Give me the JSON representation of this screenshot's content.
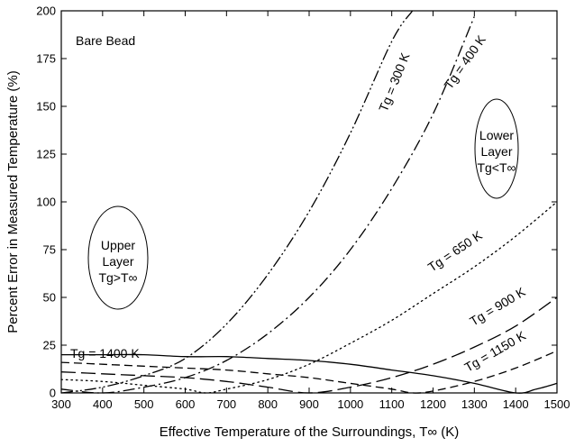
{
  "chart_data": {
    "type": "line",
    "xlabel": "Effective Temperature of the Surroundings, T∞ (K)",
    "ylabel": "Percent Error in Measured Temperature (%)",
    "xlim": [
      300,
      1500
    ],
    "ylim": [
      0,
      200
    ],
    "x_ticks": [
      300,
      400,
      500,
      600,
      700,
      800,
      900,
      1000,
      1100,
      1200,
      1300,
      1400,
      1500
    ],
    "y_ticks": [
      0,
      25,
      50,
      75,
      100,
      125,
      150,
      175,
      200
    ],
    "grid": false,
    "series": [
      {
        "name": "Tg = 300 K",
        "dash": "dash-dot-dot",
        "x": [
          300,
          400,
          500,
          600,
          700,
          800,
          900,
          1000,
          1100,
          1150
        ],
        "y": [
          0,
          3,
          9,
          18,
          36,
          62,
          95,
          136,
          184,
          200
        ]
      },
      {
        "name": "Tg = 400 K",
        "dash": "dash-dot",
        "x": [
          300,
          400,
          500,
          600,
          700,
          800,
          900,
          1000,
          1100,
          1200,
          1300
        ],
        "y": [
          2,
          0,
          3,
          8,
          17,
          31,
          50,
          75,
          107,
          146,
          197
        ]
      },
      {
        "name": "Tg = 650 K",
        "dash": "dotted",
        "x": [
          300,
          400,
          500,
          600,
          650,
          700,
          800,
          900,
          1000,
          1100,
          1200,
          1300,
          1400,
          1500
        ],
        "y": [
          7,
          6,
          4,
          2,
          0,
          2,
          7,
          15,
          26,
          38,
          52,
          66,
          82,
          100
        ]
      },
      {
        "name": "Tg = 900 K",
        "dash": "long-dash",
        "x": [
          300,
          400,
          500,
          600,
          700,
          800,
          900,
          1000,
          1100,
          1200,
          1300,
          1400,
          1500
        ],
        "y": [
          11,
          10,
          9,
          8,
          6,
          3,
          0,
          3,
          8,
          15,
          24,
          35,
          50
        ]
      },
      {
        "name": "Tg = 1150 K",
        "dash": "dashed",
        "x": [
          300,
          400,
          500,
          600,
          700,
          800,
          900,
          1000,
          1100,
          1150,
          1200,
          1300,
          1400,
          1500
        ],
        "y": [
          16,
          15,
          14,
          13,
          12,
          10,
          8,
          5,
          2,
          0,
          1,
          6,
          13,
          22
        ]
      },
      {
        "name": "Tg = 1400 K",
        "dash": "solid",
        "x": [
          300,
          400,
          500,
          600,
          700,
          800,
          900,
          1000,
          1100,
          1200,
          1300,
          1400,
          1450,
          1500
        ],
        "y": [
          20,
          20,
          20,
          19,
          19,
          18,
          17,
          15,
          12,
          9,
          5,
          0,
          2,
          5
        ]
      }
    ],
    "annotations": {
      "bare_bead": "Bare Bead",
      "upper": [
        "Upper",
        "Layer",
        "Tg>T∞"
      ],
      "lower": [
        "Lower",
        "Layer",
        "Tg<T∞"
      ],
      "label_300": "Tg = 300 K",
      "label_400": "Tg = 400 K",
      "label_650": "Tg = 650 K",
      "label_900": "Tg = 900 K",
      "label_1150": "Tg = 1150 K",
      "label_1400": "Tg = 1400 K"
    }
  }
}
